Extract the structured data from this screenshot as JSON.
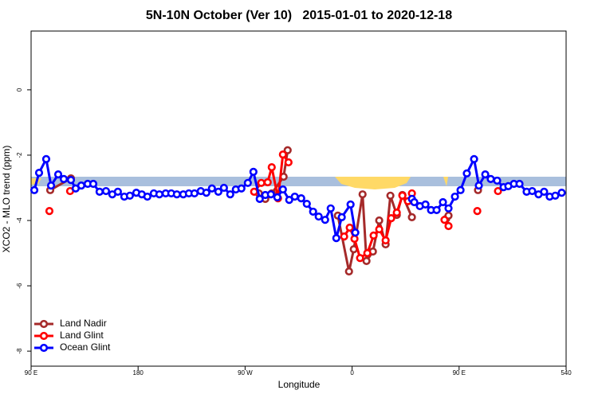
{
  "chart_data": {
    "type": "line",
    "title": "5N-10N October (Ver 10)   2015-01-01 to 2020-12-18",
    "x_label": "Longitude",
    "y_label": "XCO2 - MLO trend (ppm)",
    "xlim": [
      90,
      540
    ],
    "ylim": [
      -8.46,
      1.8
    ],
    "xticks": [
      {
        "value": 90,
        "label": "90 E"
      },
      180,
      {
        "value": 270,
        "label": "90 W"
      },
      {
        "value": 360,
        "label": "0"
      },
      {
        "value": 450,
        "label": "90 E"
      },
      540
    ],
    "yticks": [
      0,
      -2,
      -4,
      -6,
      -8
    ],
    "legend": "bottom-left",
    "series": [
      {
        "name": "Land Nadir",
        "color": "#a52a2a",
        "x": [
          106.1,
          123.5,
          null,
          281.6,
          287,
          292.4,
          302.4,
          305.8,
          null,
          348,
          357.4,
          361.4,
          368.8,
          372.1,
          377.5,
          382.8,
          388.2,
          392.2,
          397.6,
          402.3,
          410.3,
          null,
          439.1,
          441.1,
          null,
          465.9
        ],
        "values": [
          -3.07,
          -2.71,
          null,
          -3.17,
          -3.34,
          -3.17,
          -2.66,
          -1.85,
          null,
          -3.85,
          -5.56,
          -4.88,
          -3.2,
          -5.24,
          -4.95,
          -4.0,
          -4.73,
          -3.24,
          -3.83,
          -3.22,
          -3.9,
          null,
          -3.95,
          -3.85,
          null,
          -3.07
        ]
      },
      {
        "name": "Land Glint",
        "color": "#ff0000",
        "x": [
          105.4,
          null,
          122.8,
          null,
          277.6,
          283.6,
          289,
          292.4,
          297.7,
          301.8,
          306.5,
          null,
          353.3,
          358,
          362,
          366.7,
          372.8,
          378.1,
          382.8,
          388.2,
          392.9,
          397.6,
          402.3,
          407,
          410.3,
          null,
          437.7,
          441.1,
          null,
          465.3,
          null,
          482.7
        ],
        "values": [
          -3.71,
          null,
          -3.1,
          null,
          -3.12,
          -2.85,
          -2.83,
          -2.37,
          -3.32,
          -1.98,
          -2.22,
          null,
          -4.49,
          -4.22,
          -4.56,
          -5.15,
          -5.0,
          -4.46,
          -4.27,
          -4.61,
          -3.93,
          -3.76,
          -3.24,
          -3.41,
          -3.17,
          null,
          -3.98,
          -4.17,
          null,
          -3.71,
          null,
          -3.1
        ]
      },
      {
        "name": "Ocean Glint",
        "color": "#0000ff",
        "x": [
          92.7,
          96.7,
          102.7,
          106.8,
          112.8,
          117.5,
          123.5,
          127.5,
          132.2,
          137.6,
          142.3,
          147.6,
          153,
          158.3,
          163,
          168.4,
          173.1,
          178.5,
          183.1,
          187.8,
          193.2,
          197.9,
          203.2,
          207.9,
          212.6,
          218,
          222.7,
          227.4,
          232.7,
          237.4,
          242.1,
          247.5,
          252.2,
          257.5,
          262.2,
          266.9,
          272.3,
          277,
          282.3,
          287,
          291.7,
          297.1,
          301.8,
          307.1,
          311.8,
          317.2,
          321.9,
          327.2,
          331.9,
          337.3,
          342,
          346.7,
          351.3,
          358.7,
          362.7,
          null,
          410.3,
          412.3,
          417,
          421.7,
          426.4,
          431.1,
          436.4,
          441.1,
          446.5,
          451.2,
          456.5,
          462.6,
          466.6,
          472,
          476.6,
          482,
          487.4,
          491.4,
          496.1,
          500.8,
          506.8,
          511.5,
          516.8,
          521.5,
          526.2,
          530.9,
          536.3
        ],
        "values": [
          -3.07,
          -2.54,
          -2.12,
          -2.93,
          -2.59,
          -2.73,
          -2.76,
          -3.02,
          -2.93,
          -2.88,
          -2.88,
          -3.12,
          -3.1,
          -3.2,
          -3.12,
          -3.27,
          -3.24,
          -3.15,
          -3.2,
          -3.27,
          -3.17,
          -3.2,
          -3.17,
          -3.17,
          -3.2,
          -3.2,
          -3.17,
          -3.17,
          -3.1,
          -3.15,
          -3.02,
          -3.12,
          -3.0,
          -3.2,
          -3.05,
          -3.02,
          -2.85,
          -2.51,
          -3.34,
          -3.22,
          -3.2,
          -3.29,
          -3.05,
          -3.37,
          -3.27,
          -3.32,
          -3.49,
          -3.73,
          -3.88,
          -3.98,
          -3.63,
          -4.54,
          -3.9,
          -3.51,
          -4.37,
          null,
          -3.34,
          -3.44,
          -3.56,
          -3.51,
          -3.68,
          -3.68,
          -3.44,
          -3.63,
          -3.27,
          -3.07,
          -2.56,
          -2.12,
          -2.93,
          -2.59,
          -2.73,
          -2.78,
          -2.98,
          -2.95,
          -2.88,
          -2.88,
          -3.12,
          -3.1,
          -3.2,
          -3.12,
          -3.27,
          -3.24,
          -3.15
        ]
      }
    ]
  }
}
